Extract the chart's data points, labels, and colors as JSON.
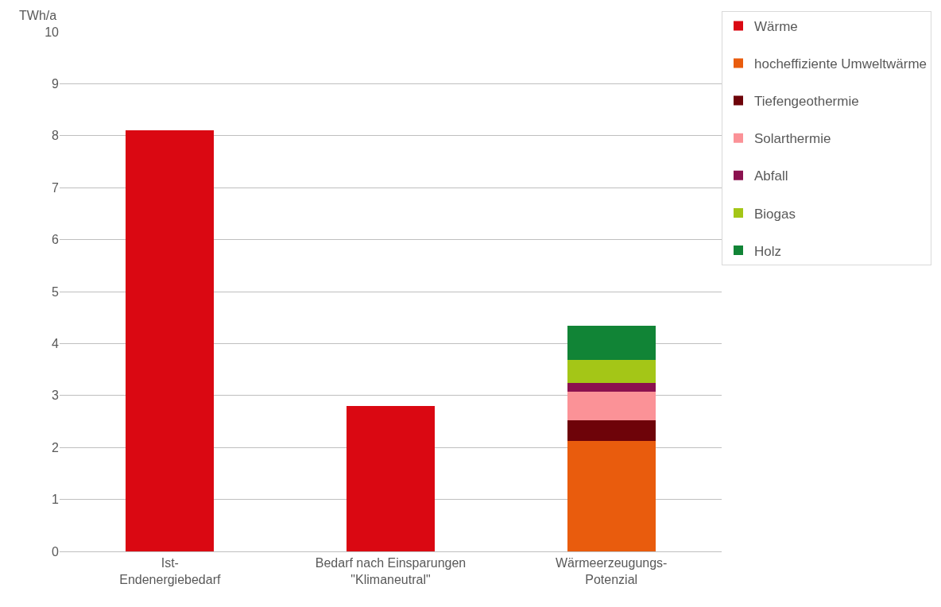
{
  "chart_data": {
    "type": "bar",
    "ylabel": "TWh/a",
    "categories": [
      "Ist-Endenergiebedarf",
      "Bedarf nach Einsparungen \"Klimaneutral\"",
      "Wärmeerzeugungs-Potenzial"
    ],
    "stacked": true,
    "series": [
      {
        "name": "Wärme",
        "color": "#da0812",
        "values": [
          8.1,
          2.8,
          null
        ]
      },
      {
        "name": "hocheffiziente Umweltwärme",
        "color": "#e95c0d",
        "values": [
          null,
          null,
          2.12
        ]
      },
      {
        "name": "Tiefengeothermie",
        "color": "#6e0309",
        "values": [
          null,
          null,
          0.4
        ]
      },
      {
        "name": "Solarthermie",
        "color": "#fb9297",
        "values": [
          null,
          null,
          0.56
        ]
      },
      {
        "name": "Abfall",
        "color": "#8b114f",
        "values": [
          null,
          null,
          0.16
        ]
      },
      {
        "name": "Biogas",
        "color": "#a4c617",
        "values": [
          null,
          null,
          0.44
        ]
      },
      {
        "name": "Holz",
        "color": "#118436",
        "values": [
          null,
          null,
          0.66
        ]
      }
    ],
    "ylim": [
      0,
      10
    ],
    "yticks": [
      0,
      1,
      2,
      3,
      4,
      5,
      6,
      7,
      8,
      9,
      10
    ],
    "grid": "y",
    "legend": "top right"
  }
}
